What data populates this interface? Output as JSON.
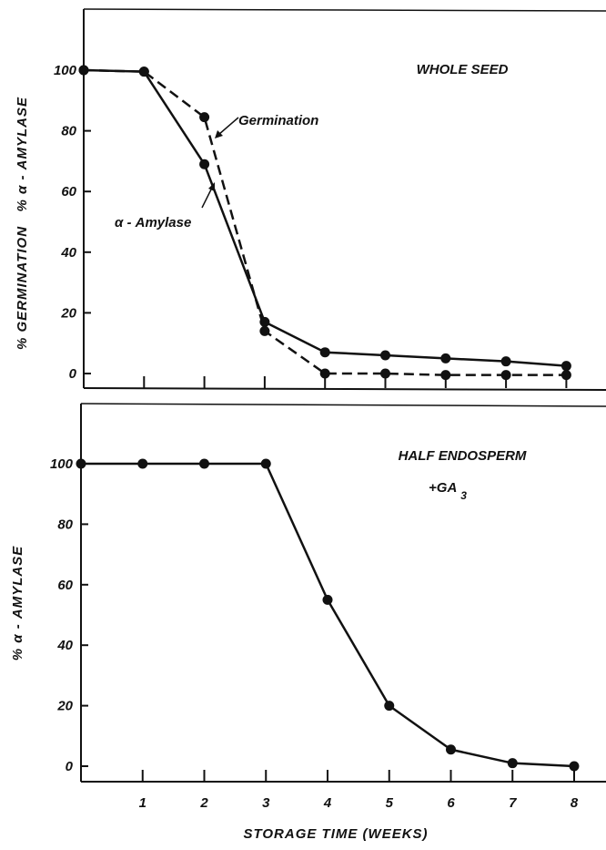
{
  "chart_data": [
    {
      "type": "line",
      "panel_label": "WHOLE SEED",
      "ylabel": "% GERMINATION   % α - AMYLASE",
      "xlim": [
        0,
        8
      ],
      "ylim": [
        -5,
        120
      ],
      "yticks": [
        0,
        20,
        40,
        60,
        80,
        100
      ],
      "series": [
        {
          "name": "α - Amylase",
          "style": "solid",
          "x": [
            0,
            1,
            2,
            3,
            4,
            5,
            6,
            7,
            8
          ],
          "y": [
            100,
            99.5,
            69,
            17,
            7,
            6,
            5,
            4,
            2.5
          ]
        },
        {
          "name": "Germination",
          "style": "dashed",
          "x": [
            0,
            1,
            2,
            3,
            4,
            5,
            6,
            7,
            8
          ],
          "y": [
            100,
            99.5,
            84.5,
            14,
            0,
            0,
            -0.5,
            -0.5,
            -0.5
          ]
        }
      ]
    },
    {
      "type": "line",
      "panel_label": "HALF ENDOSPERM",
      "panel_label_2": "+GA",
      "panel_label_sub": "3",
      "ylabel": "% α - AMYLASE",
      "xlabel": "STORAGE TIME (WEEKS)",
      "xlim": [
        0,
        8
      ],
      "ylim": [
        -5,
        120
      ],
      "xticks": [
        1,
        2,
        3,
        4,
        5,
        6,
        7,
        8
      ],
      "yticks": [
        0,
        20,
        40,
        60,
        80,
        100
      ],
      "series": [
        {
          "style": "solid",
          "x": [
            0,
            1,
            2,
            3,
            4,
            5,
            6,
            7,
            8
          ],
          "y": [
            100,
            100,
            100,
            100,
            55,
            20,
            5.5,
            1,
            0
          ]
        }
      ]
    }
  ]
}
